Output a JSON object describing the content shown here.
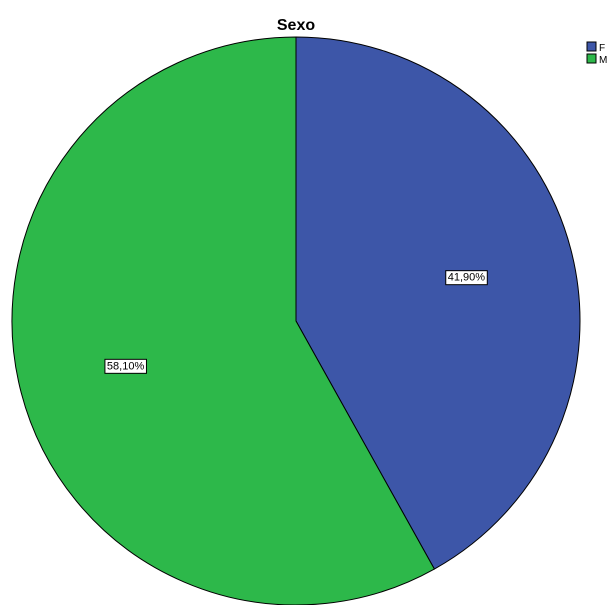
{
  "chart_data": {
    "type": "pie",
    "title": "Sexo",
    "categories": [
      "F",
      "M"
    ],
    "values": [
      41.9,
      58.1
    ],
    "data_labels": [
      "41,90%",
      "58,10%"
    ],
    "colors": [
      "#3d56a8",
      "#2db84a"
    ],
    "legend": {
      "position": "top-right",
      "entries": [
        "F",
        "M"
      ]
    },
    "start_angle_deg": 0,
    "direction": "clockwise"
  }
}
